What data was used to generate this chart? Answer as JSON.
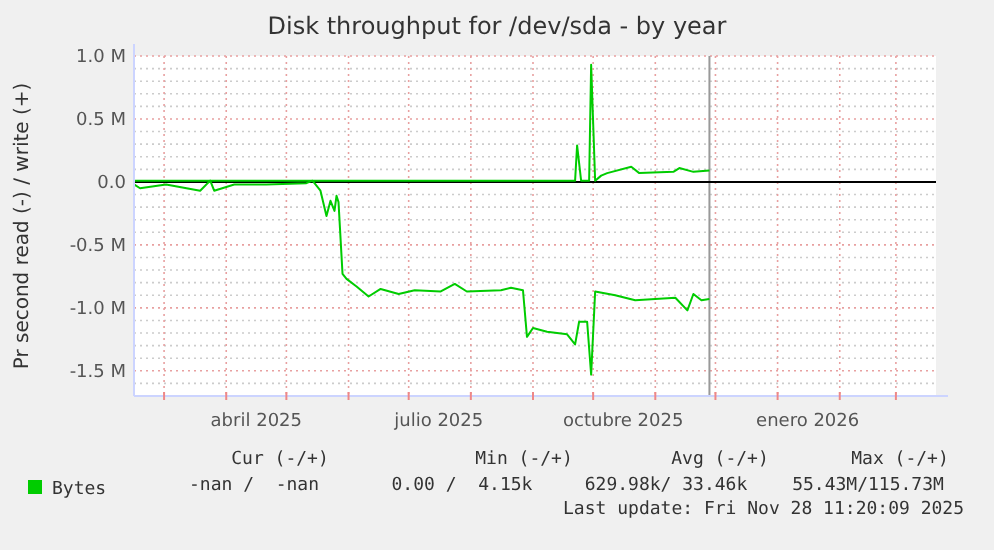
{
  "chart_data": {
    "type": "line",
    "title": "Disk throughput for /dev/sda - by year",
    "ylabel": "Pr second read (-) / write (+)",
    "xlim": [
      "2025-02-14",
      "2026-03-21"
    ],
    "xticks": [
      {
        "value": "2025-03-01",
        "label": null
      },
      {
        "value": "2025-04-01",
        "label": null
      },
      {
        "value": "2025-04-16",
        "label": "abril 2025"
      },
      {
        "value": "2025-05-01",
        "label": null
      },
      {
        "value": "2025-06-01",
        "label": null
      },
      {
        "value": "2025-07-01",
        "label": null
      },
      {
        "value": "2025-07-16",
        "label": "julio 2025"
      },
      {
        "value": "2025-08-01",
        "label": null
      },
      {
        "value": "2025-09-01",
        "label": null
      },
      {
        "value": "2025-10-01",
        "label": null
      },
      {
        "value": "2025-10-16",
        "label": "octubre 2025"
      },
      {
        "value": "2025-11-01",
        "label": null
      },
      {
        "value": "2025-12-01",
        "label": null
      },
      {
        "value": "2026-01-01",
        "label": null
      },
      {
        "value": "2026-01-16",
        "label": "enero 2026"
      },
      {
        "value": "2026-02-01",
        "label": null
      },
      {
        "value": "2026-03-01",
        "label": null
      }
    ],
    "ylim": [
      -1700000,
      1000000
    ],
    "yticks": [
      {
        "value": -1500000,
        "label": "-1.5 M"
      },
      {
        "value": -1000000,
        "label": "-1.0 M"
      },
      {
        "value": -500000,
        "label": "-0.5 M"
      },
      {
        "value": 0,
        "label": "0.0"
      },
      {
        "value": 500000,
        "label": "0.5 M"
      },
      {
        "value": 1000000,
        "label": "1.0 M"
      },
      {
        "value": -1600000,
        "label": null
      },
      {
        "value": -1400000,
        "label": null
      },
      {
        "value": -1300000,
        "label": null
      },
      {
        "value": -1200000,
        "label": null
      },
      {
        "value": -1100000,
        "label": null
      },
      {
        "value": -900000,
        "label": null
      },
      {
        "value": -800000,
        "label": null
      },
      {
        "value": -700000,
        "label": null
      },
      {
        "value": -600000,
        "label": null
      },
      {
        "value": -400000,
        "label": null
      },
      {
        "value": -300000,
        "label": null
      },
      {
        "value": -200000,
        "label": null
      },
      {
        "value": -100000,
        "label": null
      },
      {
        "value": 100000,
        "label": null
      },
      {
        "value": 200000,
        "label": null
      },
      {
        "value": 300000,
        "label": null
      },
      {
        "value": 400000,
        "label": null
      },
      {
        "value": 600000,
        "label": null
      },
      {
        "value": 700000,
        "label": null
      },
      {
        "value": 800000,
        "label": null
      },
      {
        "value": 900000,
        "label": null
      }
    ],
    "grid": true,
    "legend": "bottom",
    "ref_lines": [
      {
        "axis": "x",
        "value": "2025-11-28",
        "color": "#999999"
      },
      {
        "axis": "y",
        "value": 0,
        "color": "#000000"
      }
    ],
    "series": [
      {
        "color": "#00cc00",
        "x": [
          "2025-02-14",
          "2025-02-17",
          "2025-03-02",
          "2025-03-19",
          "2025-03-24",
          "2025-03-26",
          "2025-04-05",
          "2025-04-21",
          "2025-05-11",
          "2025-05-14",
          "2025-05-18",
          "2025-05-21",
          "2025-05-23",
          "2025-05-25",
          "2025-05-26",
          "2025-05-27",
          "2025-05-29",
          "2025-05-31",
          "2025-06-05",
          "2025-06-11",
          "2025-06-17",
          "2025-06-26",
          "2025-07-04",
          "2025-07-17",
          "2025-07-24",
          "2025-07-30",
          "2025-08-16",
          "2025-08-21",
          "2025-08-27",
          "2025-08-29",
          "2025-09-01",
          "2025-09-08",
          "2025-09-18",
          "2025-09-22",
          "2025-09-24",
          "2025-09-28",
          "2025-09-30",
          "2025-10-02",
          "2025-10-12",
          "2025-10-22",
          "2025-11-01",
          "2025-11-11",
          "2025-11-17",
          "2025-11-20",
          "2025-11-24",
          "2025-11-28"
        ],
        "values": [
          -20000,
          -50000,
          -20000,
          -70000,
          10000,
          -70000,
          -20000,
          -20000,
          -10000,
          10000,
          -70000,
          -270000,
          -150000,
          -230000,
          -110000,
          -160000,
          -730000,
          -770000,
          -830000,
          -910000,
          -850000,
          -890000,
          -860000,
          -870000,
          -810000,
          -870000,
          -860000,
          -840000,
          -860000,
          -1230000,
          -1160000,
          -1190000,
          -1210000,
          -1290000,
          -1110000,
          -1110000,
          -1530000,
          -870000,
          -900000,
          -940000,
          -930000,
          -920000,
          -1020000,
          -890000,
          -940000,
          -930000
        ]
      },
      {
        "name": "Bytes",
        "color": "#00cc00",
        "x": [
          "2025-02-14",
          "2025-05-11",
          "2025-09-22",
          "2025-09-23",
          "2025-09-25",
          "2025-09-29",
          "2025-09-30",
          "2025-10-02",
          "2025-10-05",
          "2025-10-08",
          "2025-10-20",
          "2025-10-24",
          "2025-11-10",
          "2025-11-13",
          "2025-11-20",
          "2025-11-28"
        ],
        "values": [
          10000,
          10000,
          10000,
          290000,
          10000,
          10000,
          930000,
          10000,
          50000,
          70000,
          120000,
          70000,
          80000,
          110000,
          80000,
          90000
        ]
      }
    ],
    "annotations": [
      "Cur (-/+)",
      "Min (-/+)",
      "Avg (-/+)",
      "Max (-/+)",
      "-nan /  -nan",
      "0.00 /  4.15k",
      "629.98k/ 33.46k",
      "55.43M/115.73M",
      "Last update: Fri Nov 28 11:20:09 2025"
    ]
  }
}
